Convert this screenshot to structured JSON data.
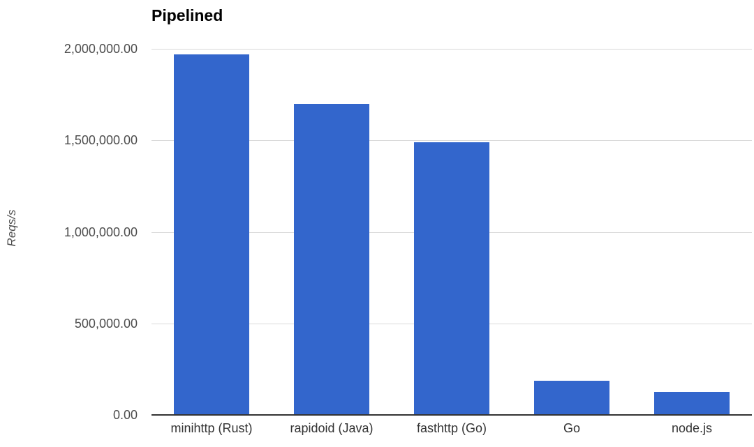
{
  "chart_data": {
    "type": "bar",
    "title": "Pipelined",
    "xlabel": "",
    "ylabel": "Reqs/s",
    "categories": [
      "minihttp (Rust)",
      "rapidoid (Java)",
      "fasthttp (Go)",
      "Go",
      "node.js"
    ],
    "values": [
      1970000,
      1700000,
      1490000,
      185000,
      127000
    ],
    "ylim": [
      0,
      2000000
    ],
    "ytick_values": [
      0,
      500000,
      1000000,
      1500000,
      2000000
    ],
    "ytick_labels": [
      "0.00",
      "500,000.00",
      "1,000,000.00",
      "1,500,000.00",
      "2,000,000.00"
    ],
    "grid": true,
    "legend_position": "none",
    "colors": {
      "bar": "#3366cc",
      "gridline": "#d9d9d9",
      "axis_line": "#333333",
      "tick_label": "#4d4d4d",
      "category_label": "#333333",
      "title": "#000000",
      "background": "#ffffff"
    }
  }
}
